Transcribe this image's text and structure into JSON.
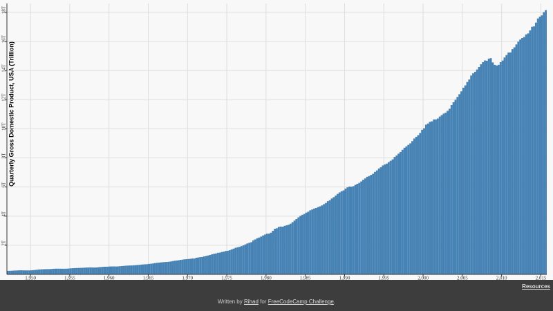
{
  "chart_data": {
    "type": "bar",
    "y_label": "Quarterly Gross Domestic Product, USA (Trillion)",
    "color": "#4682b4",
    "grid": true,
    "xlim": [
      1947,
      2015.75
    ],
    "ylim": [
      0,
      18600
    ],
    "xticks": [
      {
        "value": 1950,
        "label": "1,950"
      },
      {
        "value": 1955,
        "label": "1,955"
      },
      {
        "value": 1960,
        "label": "1,960"
      },
      {
        "value": 1965,
        "label": "1,965"
      },
      {
        "value": 1970,
        "label": "1,970"
      },
      {
        "value": 1975,
        "label": "1,975"
      },
      {
        "value": 1980,
        "label": "1,980"
      },
      {
        "value": 1985,
        "label": "1,985"
      },
      {
        "value": 1990,
        "label": "1,990"
      },
      {
        "value": 1995,
        "label": "1,995"
      },
      {
        "value": 2000,
        "label": "2,000"
      },
      {
        "value": 2005,
        "label": "2,005"
      },
      {
        "value": 2010,
        "label": "2,010"
      },
      {
        "value": 2015,
        "label": "2,015"
      }
    ],
    "yticks": [
      {
        "value": 2000,
        "label": "2T"
      },
      {
        "value": 4000,
        "label": "4T"
      },
      {
        "value": 6000,
        "label": "6T"
      },
      {
        "value": 8000,
        "label": "8T"
      },
      {
        "value": 10000,
        "label": "10T"
      },
      {
        "value": 12000,
        "label": "12T"
      },
      {
        "value": 14000,
        "label": "14T"
      },
      {
        "value": 16000,
        "label": "16T"
      },
      {
        "value": 18000,
        "label": "18T"
      }
    ],
    "x": [
      1947,
      1947.25,
      1947.5,
      1947.75,
      1948,
      1948.25,
      1948.5,
      1948.75,
      1949,
      1949.25,
      1949.5,
      1949.75,
      1950,
      1950.25,
      1950.5,
      1950.75,
      1951,
      1951.25,
      1951.5,
      1951.75,
      1952,
      1952.25,
      1952.5,
      1952.75,
      1953,
      1953.25,
      1953.5,
      1953.75,
      1954,
      1954.25,
      1954.5,
      1954.75,
      1955,
      1955.25,
      1955.5,
      1955.75,
      1956,
      1956.25,
      1956.5,
      1956.75,
      1957,
      1957.25,
      1957.5,
      1957.75,
      1958,
      1958.25,
      1958.5,
      1958.75,
      1959,
      1959.25,
      1959.5,
      1959.75,
      1960,
      1960.25,
      1960.5,
      1960.75,
      1961,
      1961.25,
      1961.5,
      1961.75,
      1962,
      1962.25,
      1962.5,
      1962.75,
      1963,
      1963.25,
      1963.5,
      1963.75,
      1964,
      1964.25,
      1964.5,
      1964.75,
      1965,
      1965.25,
      1965.5,
      1965.75,
      1966,
      1966.25,
      1966.5,
      1966.75,
      1967,
      1967.25,
      1967.5,
      1967.75,
      1968,
      1968.25,
      1968.5,
      1968.75,
      1969,
      1969.25,
      1969.5,
      1969.75,
      1970,
      1970.25,
      1970.5,
      1970.75,
      1971,
      1971.25,
      1971.5,
      1971.75,
      1972,
      1972.25,
      1972.5,
      1972.75,
      1973,
      1973.25,
      1973.5,
      1973.75,
      1974,
      1974.25,
      1974.5,
      1974.75,
      1975,
      1975.25,
      1975.5,
      1975.75,
      1976,
      1976.25,
      1976.5,
      1976.75,
      1977,
      1977.25,
      1977.5,
      1977.75,
      1978,
      1978.25,
      1978.5,
      1978.75,
      1979,
      1979.25,
      1979.5,
      1979.75,
      1980,
      1980.25,
      1980.5,
      1980.75,
      1981,
      1981.25,
      1981.5,
      1981.75,
      1982,
      1982.25,
      1982.5,
      1982.75,
      1983,
      1983.25,
      1983.5,
      1983.75,
      1984,
      1984.25,
      1984.5,
      1984.75,
      1985,
      1985.25,
      1985.5,
      1985.75,
      1986,
      1986.25,
      1986.5,
      1986.75,
      1987,
      1987.25,
      1987.5,
      1987.75,
      1988,
      1988.25,
      1988.5,
      1988.75,
      1989,
      1989.25,
      1989.5,
      1989.75,
      1990,
      1990.25,
      1990.5,
      1990.75,
      1991,
      1991.25,
      1991.5,
      1991.75,
      1992,
      1992.25,
      1992.5,
      1992.75,
      1993,
      1993.25,
      1993.5,
      1993.75,
      1994,
      1994.25,
      1994.5,
      1994.75,
      1995,
      1995.25,
      1995.5,
      1995.75,
      1996,
      1996.25,
      1996.5,
      1996.75,
      1997,
      1997.25,
      1997.5,
      1997.75,
      1998,
      1998.25,
      1998.5,
      1998.75,
      1999,
      1999.25,
      1999.5,
      1999.75,
      2000,
      2000.25,
      2000.5,
      2000.75,
      2001,
      2001.25,
      2001.5,
      2001.75,
      2002,
      2002.25,
      2002.5,
      2002.75,
      2003,
      2003.25,
      2003.5,
      2003.75,
      2004,
      2004.25,
      2004.5,
      2004.75,
      2005,
      2005.25,
      2005.5,
      2005.75,
      2006,
      2006.25,
      2006.5,
      2006.75,
      2007,
      2007.25,
      2007.5,
      2007.75,
      2008,
      2008.25,
      2008.5,
      2008.75,
      2009,
      2009.25,
      2009.5,
      2009.75,
      2010,
      2010.25,
      2010.5,
      2010.75,
      2011,
      2011.25,
      2011.5,
      2011.75,
      2012,
      2012.25,
      2012.5,
      2012.75,
      2013,
      2013.25,
      2013.5,
      2013.75,
      2014,
      2014.25,
      2014.5,
      2014.75,
      2015,
      2015.25,
      2015.5
    ],
    "values": [
      243.1,
      246.3,
      250.1,
      260.3,
      266.2,
      272.6,
      279.2,
      280.4,
      275,
      271.4,
      273,
      271,
      281.2,
      290.7,
      308.5,
      320.3,
      336.4,
      344.5,
      351.8,
      356.6,
      360.2,
      361.4,
      368.1,
      381.2,
      388.5,
      392.3,
      391.7,
      386.5,
      385.9,
      386.7,
      391.6,
      400.3,
      413.8,
      422.2,
      430.1,
      437.5,
      439.5,
      446.1,
      451.7,
      460.5,
      469.9,
      472.8,
      480.3,
      475.7,
      468.4,
      472.8,
      486.7,
      500.4,
      511.1,
      524.2,
      525.2,
      529.3,
      543.3,
      542.7,
      546,
      541.1,
      545.9,
      557.4,
      568.2,
      581.6,
      595.2,
      602.6,
      609.6,
      613.1,
      622.7,
      631.8,
      645,
      654.8,
      671.1,
      680.8,
      692.8,
      698.4,
      719.2,
      732.4,
      750.2,
      773.1,
      797.3,
      807.2,
      820.8,
      834.9,
      846,
      851.1,
      866.6,
      883.2,
      911.1,
      936.3,
      952.3,
      970.1,
      995.4,
      1011.4,
      1032,
      1040.7,
      1053.5,
      1070.1,
      1088.5,
      1091.5,
      1137.8,
      1159.4,
      1180.3,
      1193.6,
      1233.8,
      1270.1,
      1293.8,
      1332,
      1380.7,
      1417.6,
      1436.8,
      1479.1,
      1494.7,
      1534.2,
      1563.4,
      1603,
      1619.6,
      1656.4,
      1713.8,
      1765.9,
      1824.5,
      1856.9,
      1890.5,
      1938.4,
      1992.5,
      2060.2,
      2122.4,
      2168.7,
      2208.7,
      2336.6,
      2398.9,
      2482.2,
      2531.6,
      2595.9,
      2670.4,
      2730.7,
      2796.5,
      2799.9,
      2860,
      2993.5,
      3131.8,
      3167.3,
      3261.2,
      3283.5,
      3273.8,
      3331.3,
      3367.1,
      3407.8,
      3480.3,
      3583.8,
      3692.3,
      3796.1,
      3912.8,
      4015,
      4087.4,
      4147.6,
      4237,
      4302.3,
      4394.6,
      4453.1,
      4516.3,
      4555.2,
      4619.6,
      4669.4,
      4736.2,
      4821.5,
      4900.5,
      5022.7,
      5090.6,
      5207.7,
      5299.5,
      5412.7,
      5527.4,
      5628.4,
      5711.6,
      5763.4,
      5890.8,
      5974.7,
      6029.5,
      6023.3,
      6054.9,
      6143.6,
      6218.4,
      6279.3,
      6380.8,
      6492.3,
      6586.5,
      6697.6,
      6748.2,
      6829.6,
      6904.2,
      7032.8,
      7136.3,
      7269.8,
      7352.3,
      7476.7,
      7545.3,
      7604.9,
      7706.5,
      7799.5,
      7893.1,
      8061.5,
      8159,
      8287.1,
      8402.1,
      8551.9,
      8691.8,
      8788.3,
      8889.7,
      8994.7,
      9146.5,
      9325.7,
      9447.1,
      9557,
      9712.3,
      9926.1,
      10031,
      10278.3,
      10357.4,
      10472.3,
      10508.1,
      10638.4,
      10639.5,
      10701.3,
      10834.4,
      10934.8,
      11037.1,
      11103.8,
      11230.1,
      11370.7,
      11625.1,
      11816.8,
      11988.4,
      12181.4,
      12367.7,
      12562.2,
      12813.7,
      12974.1,
      13205.4,
      13381.6,
      13648.9,
      13799.8,
      13908.5,
      14066.4,
      14233.2,
      14422.3,
      14569.7,
      14685.3,
      14668.4,
      14813,
      14843,
      14549.9,
      14383.9,
      14340.4,
      14384.1,
      14566.5,
      14681.1,
      14888.6,
      15057.7,
      15230.2,
      15238.4,
      15460.9,
      15587.1,
      15785.3,
      15973.9,
      16121.9,
      16227.9,
      16297.3,
      16475.4,
      16541.4,
      16749.3,
      16999.9,
      17025.2,
      17285.6,
      17569.4,
      17692.2,
      17783.6,
      17998.3,
      18141.9
    ]
  },
  "footer": {
    "resources": "Resources",
    "written_by": "Written by",
    "author": "Rihad",
    "for": "for",
    "challenge": "FreeCodeCamp Challenge",
    "period": "."
  }
}
